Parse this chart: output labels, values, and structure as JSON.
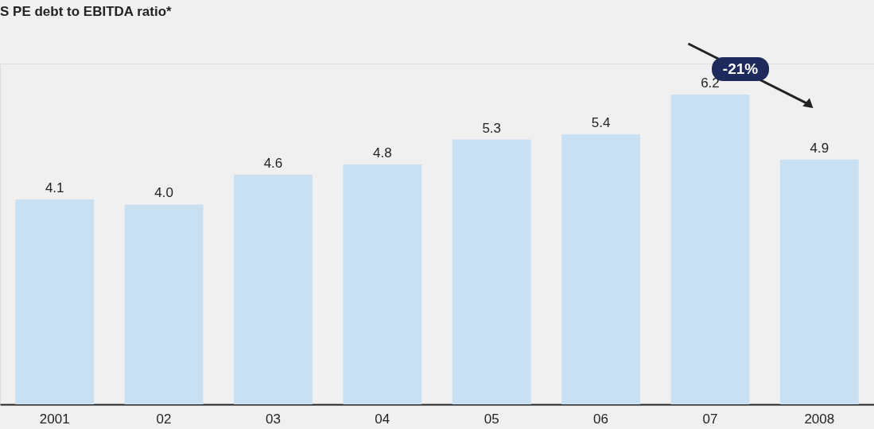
{
  "chart_data": {
    "type": "bar",
    "title": "S PE debt to EBITDA ratio*",
    "categories": [
      "2001",
      "02",
      "03",
      "04",
      "05",
      "06",
      "07",
      "2008"
    ],
    "values": [
      4.1,
      4.0,
      4.6,
      4.8,
      5.3,
      5.4,
      6.2,
      4.9
    ],
    "value_labels": [
      "4.1",
      "4.0",
      "4.6",
      "4.8",
      "5.3",
      "5.4",
      "6.2",
      "4.9"
    ],
    "color": "#c9e0f3",
    "annotations": [
      "-21%"
    ]
  }
}
